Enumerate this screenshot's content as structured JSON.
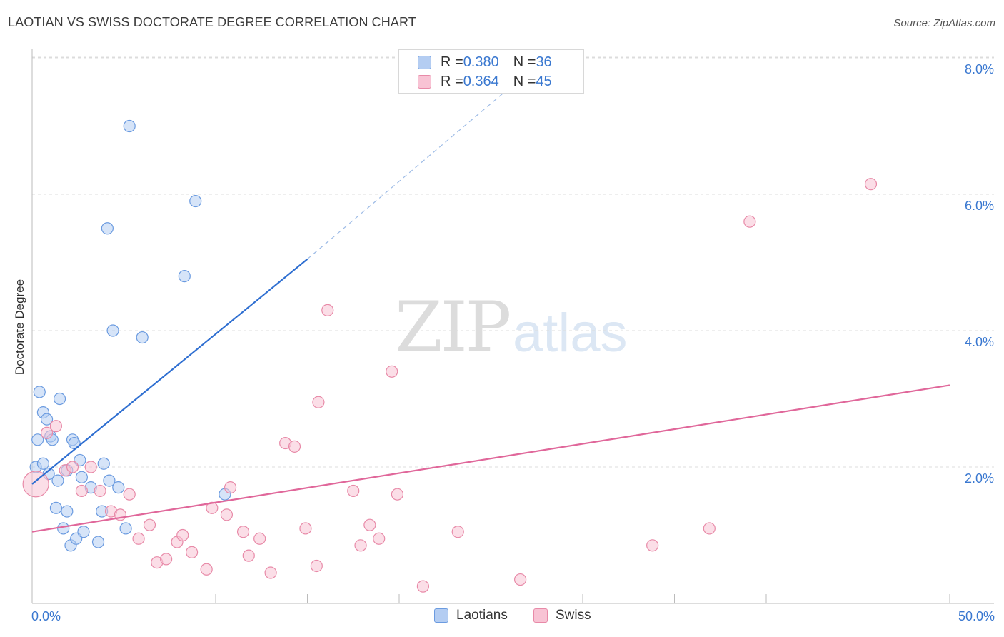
{
  "title": "LAOTIAN VS SWISS DOCTORATE DEGREE CORRELATION CHART",
  "source": "Source: ZipAtlas.com",
  "watermark": {
    "zip": "ZIP",
    "atlas": "atlas"
  },
  "legend": {
    "rows": [
      {
        "r_label": "R = ",
        "r_value": "0.380",
        "n_label": "N = ",
        "n_value": "36",
        "color": "#b4cdf2",
        "border": "#6b9be0"
      },
      {
        "r_label": "R = ",
        "r_value": "0.364",
        "n_label": "N = ",
        "n_value": "45",
        "color": "#f8c3d4",
        "border": "#e88aa8"
      }
    ]
  },
  "bottom_legend": [
    {
      "label": "Laotians",
      "color": "#b4cdf2",
      "border": "#6b9be0"
    },
    {
      "label": "Swiss",
      "color": "#f8c3d4",
      "border": "#e88aa8"
    }
  ],
  "axis": {
    "x_min_label": "0.0%",
    "x_max_label": "50.0%",
    "y_ticks": [
      {
        "value": 2,
        "label": "2.0%"
      },
      {
        "value": 4,
        "label": "4.0%"
      },
      {
        "value": 6,
        "label": "6.0%"
      },
      {
        "value": 8,
        "label": "8.0%"
      }
    ],
    "ylabel": "Doctorate Degree"
  },
  "chart_data": {
    "type": "scatter",
    "title": "LAOTIAN VS SWISS DOCTORATE DEGREE CORRELATION CHART",
    "xlabel": "",
    "ylabel": "Doctorate Degree",
    "xlim": [
      0,
      50
    ],
    "ylim": [
      0,
      8.2
    ],
    "grid": true,
    "legend_position": "top-center",
    "series": [
      {
        "name": "Laotians",
        "color": "#6b9be0",
        "fill": "#b4cdf2",
        "points": [
          [
            0.2,
            2.0
          ],
          [
            0.3,
            2.4
          ],
          [
            0.4,
            3.1
          ],
          [
            0.6,
            2.05
          ],
          [
            0.6,
            2.8
          ],
          [
            0.8,
            2.7
          ],
          [
            0.9,
            1.9
          ],
          [
            1.0,
            2.45
          ],
          [
            1.1,
            2.4
          ],
          [
            1.3,
            1.4
          ],
          [
            1.4,
            1.8
          ],
          [
            1.5,
            3.0
          ],
          [
            1.7,
            1.1
          ],
          [
            1.9,
            1.95
          ],
          [
            1.9,
            1.35
          ],
          [
            2.1,
            0.85
          ],
          [
            2.2,
            2.4
          ],
          [
            2.3,
            2.35
          ],
          [
            2.4,
            0.95
          ],
          [
            2.6,
            2.1
          ],
          [
            2.7,
            1.85
          ],
          [
            2.8,
            1.05
          ],
          [
            3.2,
            1.7
          ],
          [
            3.6,
            0.9
          ],
          [
            3.8,
            1.35
          ],
          [
            3.9,
            2.05
          ],
          [
            4.1,
            5.5
          ],
          [
            4.2,
            1.8
          ],
          [
            4.4,
            4.0
          ],
          [
            4.7,
            1.7
          ],
          [
            5.1,
            1.1
          ],
          [
            5.3,
            7.0
          ],
          [
            6.0,
            3.9
          ],
          [
            8.3,
            4.8
          ],
          [
            8.9,
            5.9
          ],
          [
            10.5,
            1.6
          ]
        ],
        "trend": {
          "x": [
            0.0,
            15.0
          ],
          "y": [
            1.75,
            5.05
          ],
          "dashed_to": [
            27.5,
            7.9
          ]
        }
      },
      {
        "name": "Swiss",
        "color": "#e88aa8",
        "fill": "#f8c3d4",
        "points": [
          [
            0.2,
            1.75
          ],
          [
            0.8,
            2.5
          ],
          [
            1.3,
            2.6
          ],
          [
            1.8,
            1.95
          ],
          [
            2.2,
            2.0
          ],
          [
            2.7,
            1.65
          ],
          [
            3.2,
            2.0
          ],
          [
            3.7,
            1.65
          ],
          [
            4.3,
            1.35
          ],
          [
            4.8,
            1.3
          ],
          [
            5.3,
            1.6
          ],
          [
            5.8,
            0.95
          ],
          [
            6.4,
            1.15
          ],
          [
            6.8,
            0.6
          ],
          [
            7.3,
            0.65
          ],
          [
            7.9,
            0.9
          ],
          [
            8.2,
            1.0
          ],
          [
            8.7,
            0.75
          ],
          [
            9.5,
            0.5
          ],
          [
            9.8,
            1.4
          ],
          [
            10.6,
            1.3
          ],
          [
            10.8,
            1.7
          ],
          [
            11.5,
            1.05
          ],
          [
            11.8,
            0.7
          ],
          [
            12.4,
            0.95
          ],
          [
            13.0,
            0.45
          ],
          [
            13.8,
            2.35
          ],
          [
            14.3,
            2.3
          ],
          [
            14.9,
            1.1
          ],
          [
            15.5,
            0.55
          ],
          [
            15.6,
            2.95
          ],
          [
            16.1,
            4.3
          ],
          [
            17.5,
            1.65
          ],
          [
            17.9,
            0.85
          ],
          [
            18.4,
            1.15
          ],
          [
            18.9,
            0.95
          ],
          [
            19.6,
            3.4
          ],
          [
            19.9,
            1.6
          ],
          [
            21.3,
            0.25
          ],
          [
            23.2,
            1.05
          ],
          [
            26.6,
            0.35
          ],
          [
            33.8,
            0.85
          ],
          [
            36.9,
            1.1
          ],
          [
            39.1,
            5.6
          ],
          [
            45.7,
            6.15
          ]
        ],
        "trend": {
          "x": [
            0.0,
            50.0
          ],
          "y": [
            1.05,
            3.2
          ]
        }
      }
    ]
  }
}
